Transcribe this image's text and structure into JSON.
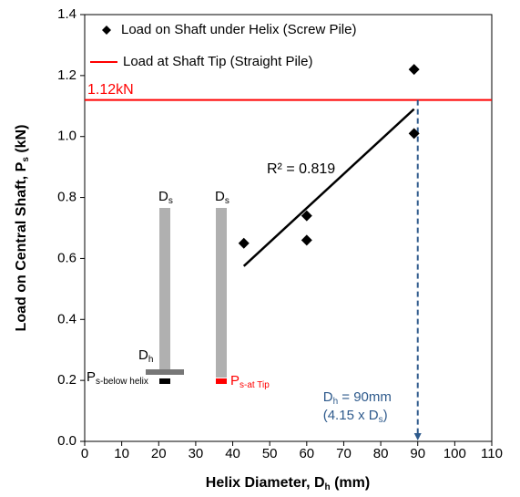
{
  "chart_data": {
    "type": "scatter",
    "x_label": {
      "main": "Helix Diameter, D",
      "sub": "h",
      "tail": " (mm)"
    },
    "y_label": {
      "main": "Load on Central Shaft, P",
      "sub": "s",
      "tail": " (kN)"
    },
    "xlim": [
      0,
      110
    ],
    "xticks": [
      0,
      10,
      20,
      30,
      40,
      50,
      60,
      70,
      80,
      90,
      100,
      110
    ],
    "ylim": [
      0,
      1.4
    ],
    "yticks": [
      {
        "value": 0,
        "label": "0.0"
      },
      {
        "value": 0.2,
        "label": "0.2"
      },
      {
        "value": 0.4,
        "label": "0.4"
      },
      {
        "value": 0.6,
        "label": "0.6"
      },
      {
        "value": 0.8,
        "label": "0.8"
      },
      {
        "value": 1.0,
        "label": "1.0"
      },
      {
        "value": 1.2,
        "label": "1.2"
      },
      {
        "value": 1.4,
        "label": "1.4"
      }
    ],
    "series": [
      {
        "name": "Load on Shaft under Helix (Screw Pile)",
        "color": "#000000",
        "x": [
          43,
          60,
          60,
          89,
          89
        ],
        "values": [
          0.65,
          0.74,
          0.66,
          1.22,
          1.01
        ]
      }
    ],
    "reference_line": {
      "name": "Load at Shaft Tip (Straight Pile)",
      "color": "#ff0000",
      "value": 1.12,
      "label": "1.12kN"
    },
    "trendline": {
      "x": [
        43,
        89
      ],
      "y": [
        0.575,
        1.09
      ],
      "label": "R² = 0.819"
    },
    "marker_line": {
      "x": 90,
      "y": [
        1.12,
        0
      ],
      "color": "#2e5a8c",
      "label": {
        "main": "D",
        "sub": "h",
        "tail": " = 90mm",
        "line2_main": "(4.15 x D",
        "line2_sub": "s",
        "line2_tail": ")"
      }
    },
    "schematic": {
      "shaft_label": {
        "main": "D",
        "sub": "s"
      },
      "helix_label": {
        "main": "D",
        "sub": "h"
      },
      "below_helix_label": {
        "main": "P",
        "sub": "s-below helix"
      },
      "tip_label": {
        "main": "P",
        "sub": "s-at Tip"
      }
    }
  }
}
